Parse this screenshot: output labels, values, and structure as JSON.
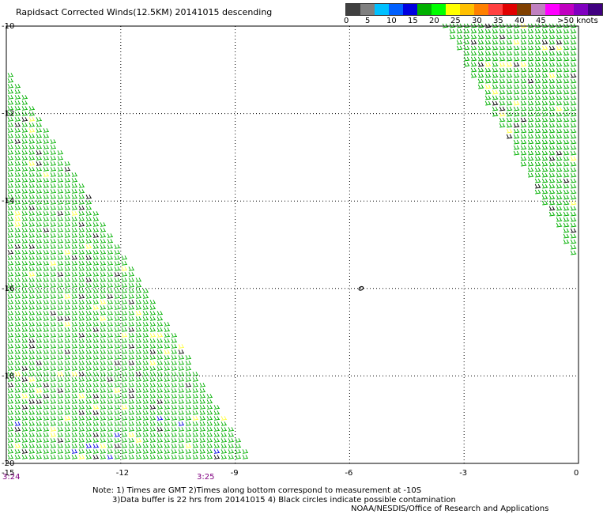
{
  "title": "Rapidsact Corrected Winds(12.5KM) 20141015 descending",
  "legend": {
    "colors": [
      "#404040",
      "#808080",
      "#00c0ff",
      "#0060ff",
      "#0000e0",
      "#00b000",
      "#00ff00",
      "#ffff00",
      "#ffc000",
      "#ff8000",
      "#ff4040",
      "#e00000",
      "#804000",
      "#c080c0",
      "#ff00ff",
      "#c000c0",
      "#8000c0",
      "#400080"
    ],
    "labels": [
      "0",
      "5",
      "10",
      "15",
      "20",
      "25",
      "30",
      "35",
      "40",
      "45",
      ">50 knots"
    ]
  },
  "axes": {
    "lon_ticks": [
      "-15",
      "-12",
      "-9",
      "-6",
      "-3",
      "0"
    ],
    "lat_ticks": [
      "-10",
      "-12",
      "-14",
      "-16",
      "-18",
      "-20"
    ]
  },
  "time_labels": [
    "3:24",
    "3:25"
  ],
  "notes": {
    "line1": "Note: 1) Times are GMT 2)Times along bottom correspond to measurement at -10S",
    "line2": "3)Data buffer is 22 hrs from 20141015 4) Black circles indicate possible contamination",
    "line3": "NOAA/NESDIS/Office of Research and Applications"
  },
  "map": {
    "lon_range": [
      -15,
      0
    ],
    "lat_range": [
      -20,
      -10
    ],
    "swaths": [
      {
        "name": "left-swath",
        "corners": [
          [
            -15,
            -11.0
          ],
          [
            -15,
            -20
          ],
          [
            -8.6,
            -20
          ]
        ],
        "dominant_color": "#00b000"
      },
      {
        "name": "right-swath",
        "corners": [
          [
            -3.6,
            -10
          ],
          [
            -0.2,
            -10
          ],
          [
            -0.2,
            -15.3
          ]
        ],
        "dominant_color": "#00b000"
      }
    ],
    "contamination_marker": {
      "lon": -5.7,
      "lat": -16.0
    }
  }
}
